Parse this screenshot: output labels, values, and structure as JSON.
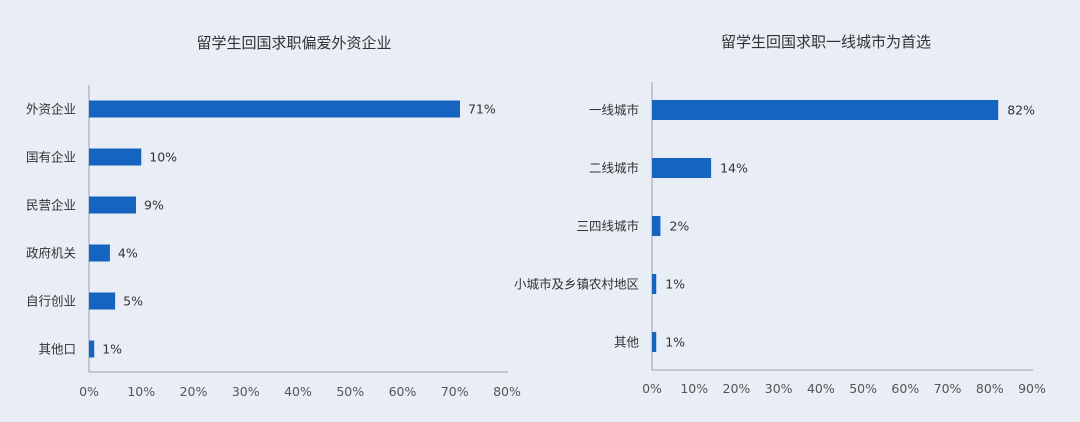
{
  "chart_data": [
    {
      "type": "bar",
      "orientation": "horizontal",
      "title": "留学生回国求职偏爱外资企业",
      "categories": [
        "外资企业",
        "国有企业",
        "民营企业",
        "政府机关",
        "自行创业",
        "其他"
      ],
      "category_labels": [
        "外资企业",
        "国有企业",
        "民营企业",
        "政府机关",
        "自行创业",
        "其他口"
      ],
      "values": [
        71,
        10,
        9,
        4,
        5,
        1
      ],
      "value_labels": [
        "71%",
        "10%",
        "9%",
        "4%",
        "5%",
        "1%"
      ],
      "xlim": [
        0,
        80
      ],
      "xticks": [
        "0%",
        "10%",
        "20%",
        "30%",
        "40%",
        "50%",
        "60%",
        "70%",
        "80%"
      ],
      "grid": false,
      "color": "#1565c0"
    },
    {
      "type": "bar",
      "orientation": "horizontal",
      "title": "留学生回国求职一线城市为首选",
      "categories": [
        "一线城市",
        "二线城市",
        "三四线城市",
        "小城市及乡镇农村地区",
        "其他"
      ],
      "category_labels": [
        "一线城市",
        "二线城市",
        "三四线城市",
        "小城市及乡镇农村地区",
        "其他"
      ],
      "values": [
        82,
        14,
        2,
        1,
        1
      ],
      "value_labels": [
        "82%",
        "14%",
        "2%",
        "1%",
        "1%"
      ],
      "xlim": [
        0,
        90
      ],
      "xticks": [
        "0%",
        "10%",
        "20%",
        "30%",
        "40%",
        "50%",
        "60%",
        "70%",
        "80%",
        "90%"
      ],
      "grid": false,
      "color": "#1565c0"
    }
  ]
}
